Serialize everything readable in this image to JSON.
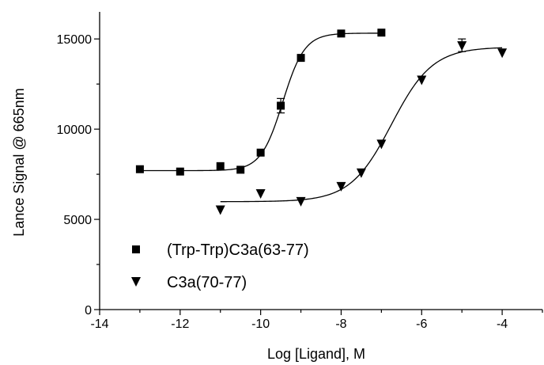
{
  "chart_data": {
    "type": "scatter",
    "title": "",
    "xlabel": "Log [Ligand], M",
    "ylabel": "Lance Signal @ 665nm",
    "xlim": [
      -14,
      -3
    ],
    "ylim": [
      0,
      16500
    ],
    "x_ticks": [
      -14,
      -12,
      -10,
      -8,
      -6,
      -4
    ],
    "x_tick_labels": [
      "-14",
      "-12",
      "-10",
      "-8",
      "-6",
      "-4"
    ],
    "y_ticks": [
      0,
      5000,
      10000,
      15000
    ],
    "y_tick_labels": [
      "0",
      "5000",
      "10000",
      "15000"
    ],
    "grid": false,
    "legend_position": "bottom-left",
    "series": [
      {
        "name": "(Trp-Trp)C3a(63-77)",
        "marker": "square",
        "color": "#000000",
        "x": [
          -13,
          -12,
          -11,
          -10.5,
          -10,
          -9.5,
          -9,
          -8,
          -7
        ],
        "y": [
          7780,
          7650,
          7950,
          7750,
          8700,
          11300,
          13950,
          15300,
          15350
        ],
        "error_bars": [
          {
            "x": -9.5,
            "y": 11300,
            "err": 400
          }
        ],
        "fit": {
          "model": "sigmoid",
          "bottom": 7700,
          "top": 15320,
          "logEC50": -9.45,
          "hill": 1.6,
          "x_range": [
            -13,
            -7
          ]
        }
      },
      {
        "name": "C3a(70-77)",
        "marker": "triangle-down",
        "color": "#000000",
        "x": [
          -11,
          -10,
          -9,
          -8,
          -7.5,
          -7,
          -6,
          -5,
          -4
        ],
        "y": [
          5550,
          6450,
          6020,
          6850,
          7600,
          9200,
          12750,
          14650,
          14250
        ],
        "error_bars": [
          {
            "x": -5,
            "y": 14650,
            "err": 350
          }
        ],
        "fit": {
          "model": "sigmoid",
          "bottom": 5980,
          "top": 14550,
          "logEC50": -6.75,
          "hill": 0.85,
          "x_range": [
            -11,
            -4
          ]
        }
      }
    ]
  }
}
